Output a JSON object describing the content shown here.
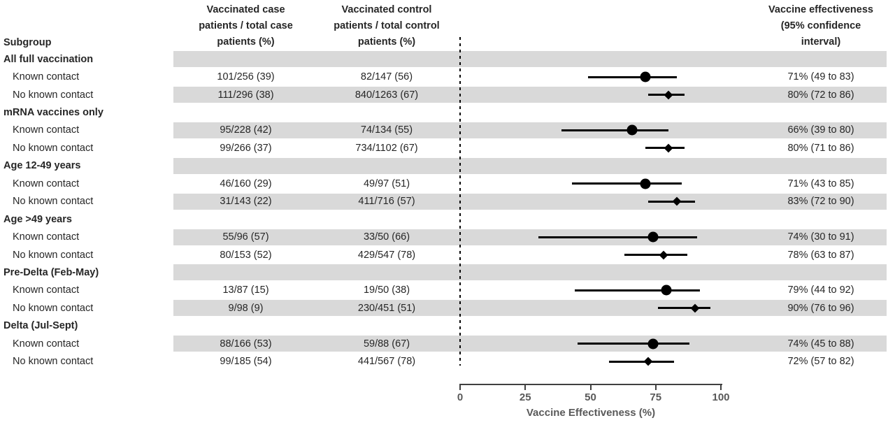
{
  "headers": {
    "subgroup": "Subgroup",
    "case_col": [
      "Vaccinated case",
      "patients / total case",
      "patients (%)"
    ],
    "control_col": [
      "Vaccinated control",
      "patients / total control",
      "patients (%)"
    ],
    "ve_col": [
      "Vaccine effectiveness",
      "(95% confidence",
      "interval)"
    ]
  },
  "colors": {
    "band": "#d9d9d9",
    "text": "#262626",
    "marker": "#000000",
    "axis_text": "#595959",
    "axis_line": "#404040"
  },
  "chart_data": {
    "type": "forest",
    "xlabel": "Vaccine Effectiveness (%)",
    "xlim": [
      0,
      100
    ],
    "x_ticks": [
      0,
      25,
      50,
      75,
      100
    ],
    "reference_line_x": 0,
    "marker_legend": {
      "circle": "Known contact",
      "diamond": "No known contact"
    },
    "rows": [
      {
        "label": "All full vaccination",
        "header": true
      },
      {
        "label": "Known contact",
        "case": "101/256 (39)",
        "control": "82/147 (56)",
        "ve": "71% (49 to 83)",
        "point": 71,
        "lo": 49,
        "hi": 83,
        "marker": "circle"
      },
      {
        "label": "No known contact",
        "case": "111/296 (38)",
        "control": "840/1263 (67)",
        "ve": "80% (72 to 86)",
        "point": 80,
        "lo": 72,
        "hi": 86,
        "marker": "diamond"
      },
      {
        "label": "mRNA vaccines only",
        "header": true
      },
      {
        "label": "Known contact",
        "case": "95/228 (42)",
        "control": "74/134 (55)",
        "ve": "66% (39 to 80)",
        "point": 66,
        "lo": 39,
        "hi": 80,
        "marker": "circle"
      },
      {
        "label": "No known contact",
        "case": "99/266 (37)",
        "control": "734/1102 (67)",
        "ve": "80% (71 to 86)",
        "point": 80,
        "lo": 71,
        "hi": 86,
        "marker": "diamond"
      },
      {
        "label": "Age 12-49 years",
        "header": true
      },
      {
        "label": "Known contact",
        "case": "46/160 (29)",
        "control": "49/97 (51)",
        "ve": "71% (43 to 85)",
        "point": 71,
        "lo": 43,
        "hi": 85,
        "marker": "circle"
      },
      {
        "label": "No known contact",
        "case": "31/143 (22)",
        "control": "411/716 (57)",
        "ve": "83% (72 to 90)",
        "point": 83,
        "lo": 72,
        "hi": 90,
        "marker": "diamond"
      },
      {
        "label": "Age >49 years",
        "header": true
      },
      {
        "label": "Known contact",
        "case": "55/96 (57)",
        "control": "33/50 (66)",
        "ve": "74% (30 to 91)",
        "point": 74,
        "lo": 30,
        "hi": 91,
        "marker": "circle"
      },
      {
        "label": "No known contact",
        "case": "80/153 (52)",
        "control": "429/547 (78)",
        "ve": "78% (63 to 87)",
        "point": 78,
        "lo": 63,
        "hi": 87,
        "marker": "diamond"
      },
      {
        "label": "Pre-Delta (Feb-May)",
        "header": true
      },
      {
        "label": "Known contact",
        "case": "13/87 (15)",
        "control": "19/50 (38)",
        "ve": "79% (44 to 92)",
        "point": 79,
        "lo": 44,
        "hi": 92,
        "marker": "circle"
      },
      {
        "label": "No known contact",
        "case": "9/98 (9)",
        "control": "230/451 (51)",
        "ve": "90% (76 to 96)",
        "point": 90,
        "lo": 76,
        "hi": 96,
        "marker": "diamond"
      },
      {
        "label": "Delta (Jul-Sept)",
        "header": true
      },
      {
        "label": "Known contact",
        "case": "88/166 (53)",
        "control": "59/88 (67)",
        "ve": "74% (45 to 88)",
        "point": 74,
        "lo": 45,
        "hi": 88,
        "marker": "circle"
      },
      {
        "label": "No known contact",
        "case": "99/185 (54)",
        "control": "441/567 (78)",
        "ve": "72% (57 to 82)",
        "point": 72,
        "lo": 57,
        "hi": 82,
        "marker": "diamond"
      }
    ]
  }
}
